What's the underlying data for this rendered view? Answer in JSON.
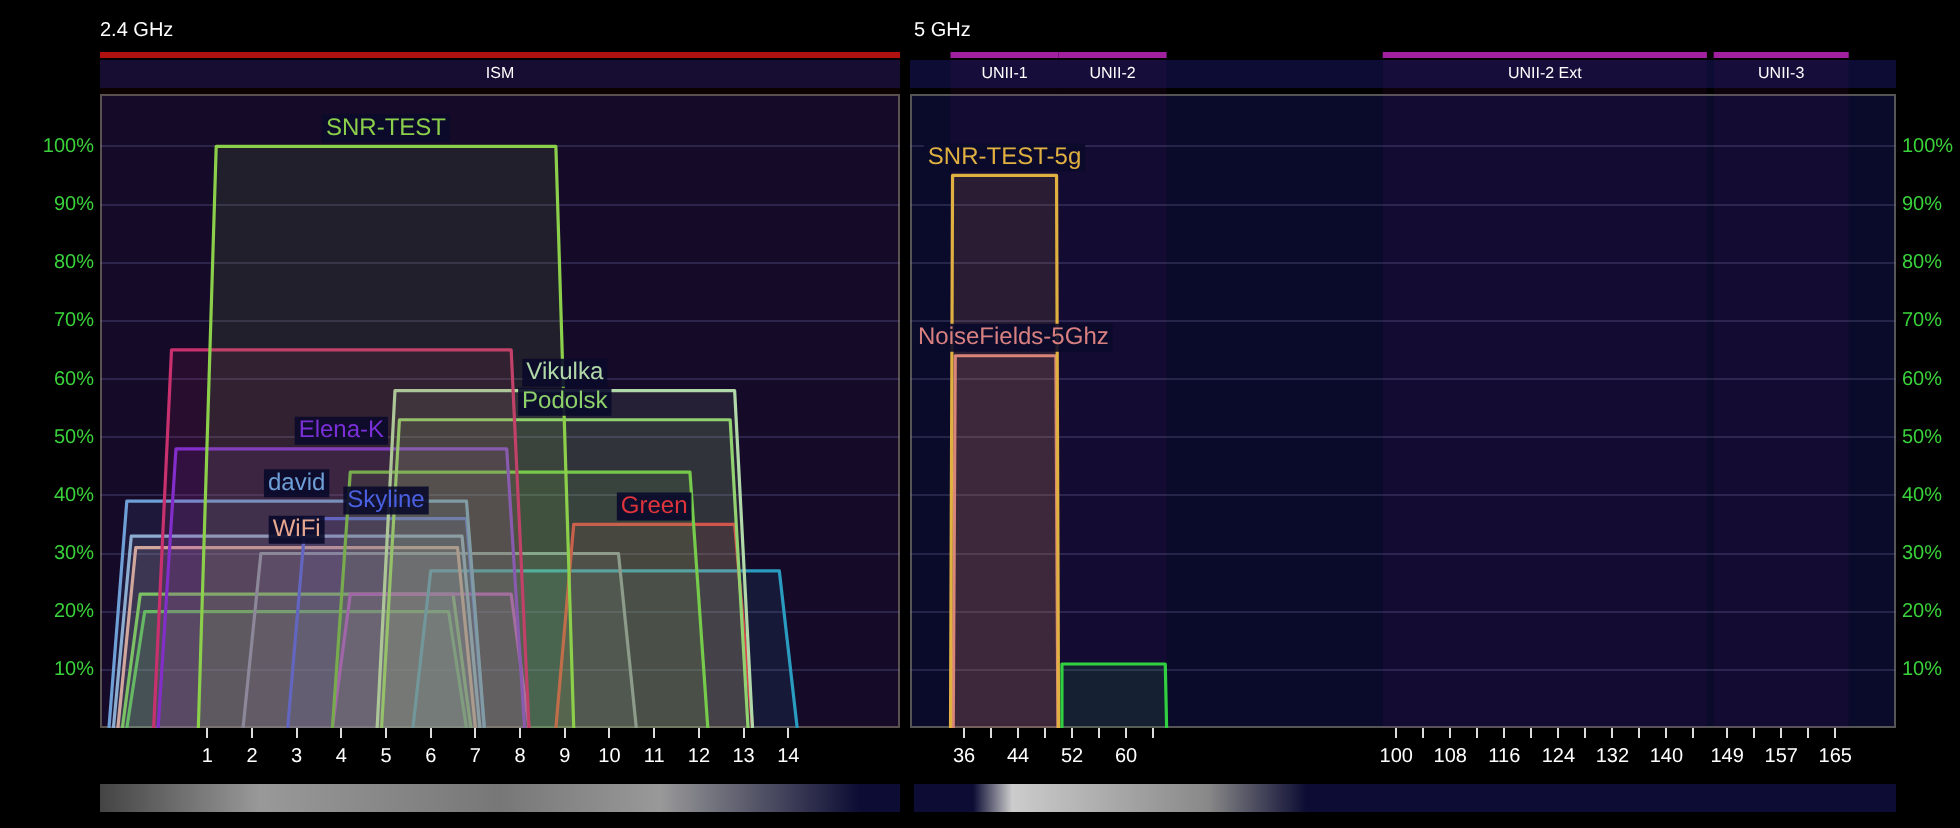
{
  "chart_data": [
    {
      "type": "area",
      "title": "2.4 GHz",
      "xlim": [
        -1.4,
        16.5
      ],
      "xticks": [
        1,
        2,
        3,
        4,
        5,
        6,
        7,
        8,
        9,
        10,
        11,
        12,
        13,
        14
      ],
      "ylim": [
        0,
        109
      ],
      "yticks": [
        {
          "value": 10,
          "label": "10%"
        },
        {
          "value": 20,
          "label": "20%"
        },
        {
          "value": 30,
          "label": "30%"
        },
        {
          "value": 40,
          "label": "40%"
        },
        {
          "value": 50,
          "label": "50%"
        },
        {
          "value": 60,
          "label": "60%"
        },
        {
          "value": 70,
          "label": "70%"
        },
        {
          "value": 80,
          "label": "80%"
        },
        {
          "value": 90,
          "label": "90%"
        },
        {
          "value": 100,
          "label": "100%"
        }
      ],
      "grid": "y",
      "bands": [
        {
          "axis": "x",
          "from": -1.4,
          "to": 16.5,
          "label": "ISM",
          "color": "#b01010"
        }
      ],
      "series": [
        {
          "name": "SNR-TEST",
          "color": "#8ccf4a",
          "x": [
            0.8,
            1.2,
            8.8,
            9.2
          ],
          "values": [
            0,
            100,
            100,
            0
          ]
        },
        {
          "color": "#c8306e",
          "x": [
            -0.2,
            0.2,
            7.8,
            8.2
          ],
          "values": [
            0,
            65,
            65,
            0
          ]
        },
        {
          "name": "Vikulka",
          "color": "#b0d8a8",
          "x": [
            4.8,
            5.2,
            12.8,
            13.2
          ],
          "values": [
            0,
            58,
            58,
            0
          ]
        },
        {
          "name": "Podolsk",
          "color": "#8ed06a",
          "x": [
            4.9,
            5.3,
            12.7,
            13.1
          ],
          "values": [
            0,
            53,
            53,
            0
          ]
        },
        {
          "name": "Elena-K",
          "color": "#7b2fd6",
          "x": [
            -0.1,
            0.3,
            7.7,
            8.1
          ],
          "values": [
            0,
            48,
            48,
            0
          ]
        },
        {
          "color": "#6cc83c",
          "x": [
            3.8,
            4.2,
            11.8,
            12.2
          ],
          "values": [
            0,
            44,
            44,
            0
          ]
        },
        {
          "name": "david",
          "color": "#6e9fd6",
          "x": [
            -1.2,
            -0.8,
            6.8,
            7.2
          ],
          "values": [
            0,
            39,
            39,
            0
          ]
        },
        {
          "name": "Skyline",
          "color": "#4a60e0",
          "x": [
            2.8,
            3.2,
            6.8,
            7.2
          ],
          "values": [
            0,
            36,
            36,
            0
          ]
        },
        {
          "name": "Green",
          "color": "#e0343c",
          "x": [
            8.8,
            9.2,
            12.8,
            13.2
          ],
          "values": [
            0,
            35,
            35,
            0
          ]
        },
        {
          "color": "#90b0d0",
          "x": [
            -1.1,
            -0.7,
            6.7,
            7.1
          ],
          "values": [
            0,
            33,
            33,
            0
          ]
        },
        {
          "name": "WiFi",
          "color": "#e8a890",
          "x": [
            -1,
            -0.6,
            6.6,
            7
          ],
          "values": [
            0,
            31,
            31,
            0
          ]
        },
        {
          "color": "#8090a0",
          "x": [
            1.8,
            2.2,
            10.2,
            10.6
          ],
          "values": [
            0,
            30,
            30,
            0
          ]
        },
        {
          "color": "#2a9cc0",
          "x": [
            5.6,
            6,
            13.8,
            14.2
          ],
          "values": [
            0,
            27,
            27,
            0
          ]
        },
        {
          "color": "#d030d0",
          "x": [
            3.8,
            4.2,
            7.8,
            8.2
          ],
          "values": [
            0,
            23,
            23,
            0
          ]
        },
        {
          "color": "#70d040",
          "x": [
            -0.9,
            -0.5,
            6.5,
            6.9
          ],
          "values": [
            0,
            23,
            23,
            0
          ]
        },
        {
          "color": "#50c040",
          "x": [
            -0.8,
            -0.4,
            6.4,
            6.8
          ],
          "values": [
            0,
            20,
            20,
            0
          ]
        }
      ]
    },
    {
      "type": "area",
      "title": "5 GHz",
      "xlim": [
        28,
        174
      ],
      "xticks": [
        36,
        {
          "value": 40,
          "label": null
        },
        44,
        {
          "value": 48,
          "label": null
        },
        52,
        {
          "value": 56,
          "label": null
        },
        60,
        {
          "value": 64,
          "label": null
        },
        100,
        {
          "value": 104,
          "label": null
        },
        108,
        {
          "value": 112,
          "label": null
        },
        116,
        {
          "value": 120,
          "label": null
        },
        124,
        {
          "value": 128,
          "label": null
        },
        132,
        {
          "value": 136,
          "label": null
        },
        140,
        {
          "value": 144,
          "label": null
        },
        149,
        {
          "value": 153,
          "label": null
        },
        157,
        {
          "value": 161,
          "label": null
        },
        165
      ],
      "y2lim": [
        0,
        109
      ],
      "y2ticks": [
        {
          "value": 10,
          "label": "10%"
        },
        {
          "value": 20,
          "label": "20%"
        },
        {
          "value": 30,
          "label": "30%"
        },
        {
          "value": 40,
          "label": "40%"
        },
        {
          "value": 50,
          "label": "50%"
        },
        {
          "value": 60,
          "label": "60%"
        },
        {
          "value": 70,
          "label": "70%"
        },
        {
          "value": 80,
          "label": "80%"
        },
        {
          "value": 90,
          "label": "90%"
        },
        {
          "value": 100,
          "label": "100%"
        }
      ],
      "grid": "y",
      "bands": [
        {
          "axis": "x",
          "from": 34,
          "to": 50,
          "label": "UNII-1",
          "color": "#a020a0"
        },
        {
          "axis": "x",
          "from": 50,
          "to": 66,
          "label": "UNII-2",
          "color": "#a020a0"
        },
        {
          "axis": "x",
          "from": 98,
          "to": 146,
          "label": "UNII-2 Ext",
          "color": "#a020a0"
        },
        {
          "axis": "x",
          "from": 147,
          "to": 167,
          "label": "UNII-3",
          "color": "#a020a0"
        }
      ],
      "series": [
        {
          "name": "SNR-TEST-5g",
          "color": "#e0b040",
          "axis": "y2",
          "x": [
            34,
            34.3,
            49.7,
            50
          ],
          "values": [
            0,
            95,
            95,
            0
          ]
        },
        {
          "name": "NoiseFields-5Ghz",
          "color": "#d88080",
          "axis": "y2",
          "x": [
            34.4,
            34.7,
            49.6,
            49.9
          ],
          "values": [
            0,
            64,
            64,
            0
          ]
        },
        {
          "color": "#30d040",
          "axis": "y2",
          "x": [
            50.3,
            50.5,
            65.8,
            66
          ],
          "values": [
            0,
            11,
            11,
            0
          ]
        }
      ]
    }
  ]
}
